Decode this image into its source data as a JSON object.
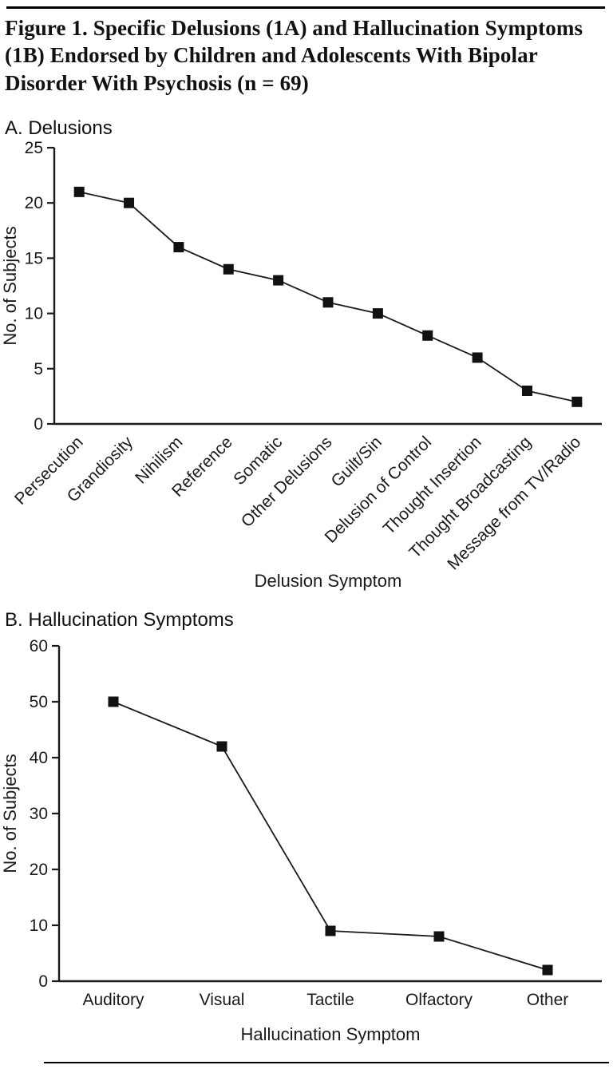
{
  "figure": {
    "title_lines": [
      "Figure 1. Specific Delusions (1A) and Hallucination Symptoms",
      "(1B) Endorsed by Children and Adolescents With Bipolar",
      "Disorder With Psychosis (n = 69)"
    ]
  },
  "chart_data": [
    {
      "type": "line",
      "panel_label": "A. Delusions",
      "categories": [
        "Persecution",
        "Grandiosity",
        "Nihilism",
        "Reference",
        "Somatic",
        "Other Delusions",
        "Guilt/Sin",
        "Delusion of Control",
        "Thought Insertion",
        "Thought Broadcasting",
        "Message from TV/Radio"
      ],
      "values": [
        21,
        20,
        16,
        14,
        13,
        11,
        10,
        8,
        6,
        3,
        2
      ],
      "xlabel": "Delusion Symptom",
      "ylabel": "No. of Subjects",
      "ylim": [
        0,
        25
      ],
      "yticks": [
        0,
        5,
        10,
        15,
        20,
        25
      ],
      "marker": "square",
      "rotate_labels": true,
      "legend": "none",
      "grid": false
    },
    {
      "type": "line",
      "panel_label": "B. Hallucination Symptoms",
      "categories": [
        "Auditory",
        "Visual",
        "Tactile",
        "Olfactory",
        "Other"
      ],
      "values": [
        50,
        42,
        9,
        8,
        2
      ],
      "xlabel": "Hallucination Symptom",
      "ylabel": "No. of Subjects",
      "ylim": [
        0,
        60
      ],
      "yticks": [
        0,
        10,
        20,
        30,
        40,
        50,
        60
      ],
      "marker": "square",
      "rotate_labels": false,
      "legend": "none",
      "grid": false
    }
  ],
  "colors": {
    "line": "#1a1a1a",
    "marker": "#111111",
    "text": "#1a1a1a"
  }
}
